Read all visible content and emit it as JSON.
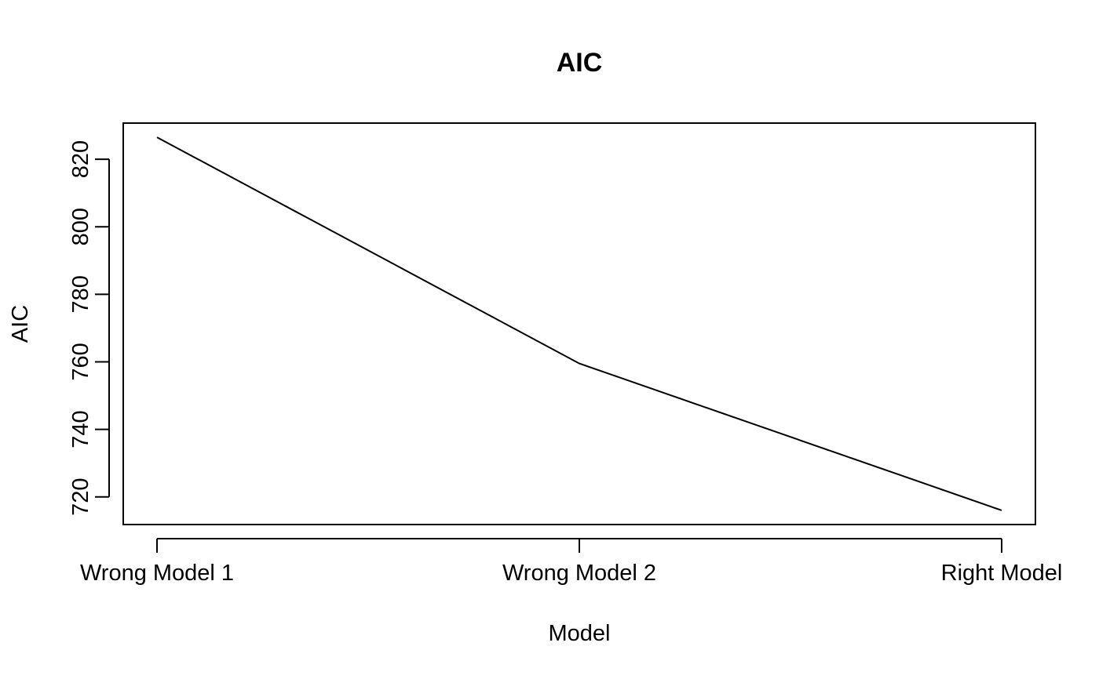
{
  "chart_data": {
    "type": "line",
    "title": "AIC",
    "xlabel": "Model",
    "ylabel": "AIC",
    "categories": [
      "Wrong Model 1",
      "Wrong Model 2",
      "Right Model"
    ],
    "series": [
      {
        "values": [
          826.5,
          759.5,
          716
        ]
      }
    ],
    "yticks": [
      720,
      740,
      760,
      780,
      800,
      820
    ],
    "ylim": [
      711.8,
      830.7
    ],
    "grid": false,
    "legend": "none",
    "line_color": "#000000"
  }
}
